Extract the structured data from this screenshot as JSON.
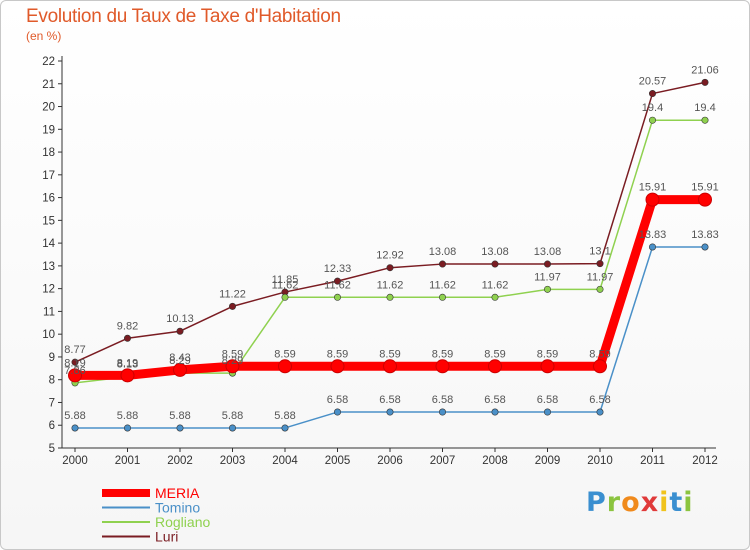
{
  "title": "Evolution du Taux de Taxe d'Habitation",
  "unit": "(en %)",
  "brand": [
    "P",
    "r",
    "o",
    "x",
    "i",
    "t",
    "i"
  ],
  "chart_data": {
    "type": "line",
    "title": "Evolution du Taux de Taxe d'Habitation",
    "ylabel": "(en %)",
    "xlabel": "",
    "x": [
      "2000",
      "2001",
      "2002",
      "2003",
      "2004",
      "2005",
      "2006",
      "2007",
      "2008",
      "2009",
      "2010",
      "2011",
      "2012"
    ],
    "ylim": [
      5,
      22
    ],
    "yticks": [
      "5",
      "6",
      "7",
      "8",
      "9",
      "10",
      "11",
      "12",
      "13",
      "14",
      "15",
      "16",
      "17",
      "18",
      "19",
      "20",
      "21",
      "22"
    ],
    "grid": false,
    "legend": "bottom-left",
    "series": [
      {
        "name": "Luri",
        "color": "#7a1c22",
        "values": [
          8.77,
          9.82,
          10.13,
          11.22,
          11.85,
          12.33,
          12.92,
          13.08,
          13.08,
          13.08,
          13.1,
          20.57,
          21.06
        ],
        "labels": [
          "8.77",
          "9.82",
          "10.13",
          "11.22",
          "11.85",
          "12.33",
          "12.92",
          "13.08",
          "13.08",
          "13.08",
          "13.1",
          "20.57",
          "21.06"
        ]
      },
      {
        "name": "Rogliano",
        "color": "#8fd14f",
        "values": [
          7.86,
          8.13,
          8.29,
          8.29,
          11.62,
          11.62,
          11.62,
          11.62,
          11.62,
          11.97,
          11.97,
          19.4,
          19.4
        ],
        "labels": [
          "7.86",
          "8.13",
          "8.29",
          "8.29",
          "11.62",
          "11.62",
          "11.62",
          "11.62",
          "11.62",
          "11.97",
          "11.97",
          "19.4",
          "19.4"
        ]
      },
      {
        "name": "Tomino",
        "color": "#4a90c8",
        "values": [
          5.88,
          5.88,
          5.88,
          5.88,
          5.88,
          6.58,
          6.58,
          6.58,
          6.58,
          6.58,
          6.58,
          13.83,
          13.83
        ],
        "labels": [
          "5.88",
          "5.88",
          "5.88",
          "5.88",
          "5.88",
          "6.58",
          "6.58",
          "6.58",
          "6.58",
          "6.58",
          "6.58",
          "13.83",
          "13.83"
        ]
      },
      {
        "name": "MERIA",
        "color": "#ff0000",
        "values": [
          8.19,
          8.19,
          8.43,
          8.59,
          8.59,
          8.59,
          8.59,
          8.59,
          8.59,
          8.59,
          8.59,
          15.91,
          15.91
        ],
        "labels": [
          "8.19",
          "8.19",
          "8.43",
          "8.59",
          "8.59",
          "8.59",
          "8.59",
          "8.59",
          "8.59",
          "8.59",
          "8.59",
          "15.91",
          "15.91"
        ]
      }
    ],
    "legend_order": [
      "MERIA",
      "Tomino",
      "Rogliano",
      "Luri"
    ]
  }
}
